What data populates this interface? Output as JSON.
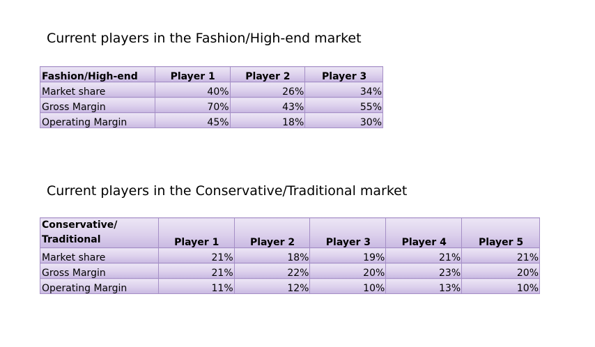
{
  "fashion": {
    "heading": "Current players in the Fashion/High-end market",
    "table": {
      "headers": [
        "Fashion/High-end",
        "Player 1",
        "Player 2",
        "Player 3"
      ],
      "rows": [
        {
          "label": "Market share",
          "values": [
            "40%",
            "26%",
            "34%"
          ]
        },
        {
          "label": "Gross Margin",
          "values": [
            "70%",
            "43%",
            "55%"
          ]
        },
        {
          "label": "Operating Margin",
          "values": [
            "45%",
            "18%",
            "30%"
          ]
        }
      ]
    }
  },
  "conservative": {
    "heading": "Current players in the Conservative/Traditional market",
    "table": {
      "header_label_line1": "Conservative/",
      "header_label_line2": "Traditional",
      "headers": [
        "Conservative/ Traditional",
        "Player 1",
        "Player 2",
        "Player 3",
        "Player 4",
        "Player 5"
      ],
      "rows": [
        {
          "label": "Market share",
          "values": [
            "21%",
            "18%",
            "19%",
            "21%",
            "21%"
          ]
        },
        {
          "label": "Gross Margin",
          "values": [
            "21%",
            "22%",
            "20%",
            "23%",
            "20%"
          ]
        },
        {
          "label": "Operating Margin",
          "values": [
            "11%",
            "12%",
            "10%",
            "13%",
            "10%"
          ]
        }
      ]
    }
  },
  "colors": {
    "cell_border": "#a58fc6",
    "cell_fill_light": "#ece6f5",
    "cell_fill_dark": "#c9b9e2"
  }
}
